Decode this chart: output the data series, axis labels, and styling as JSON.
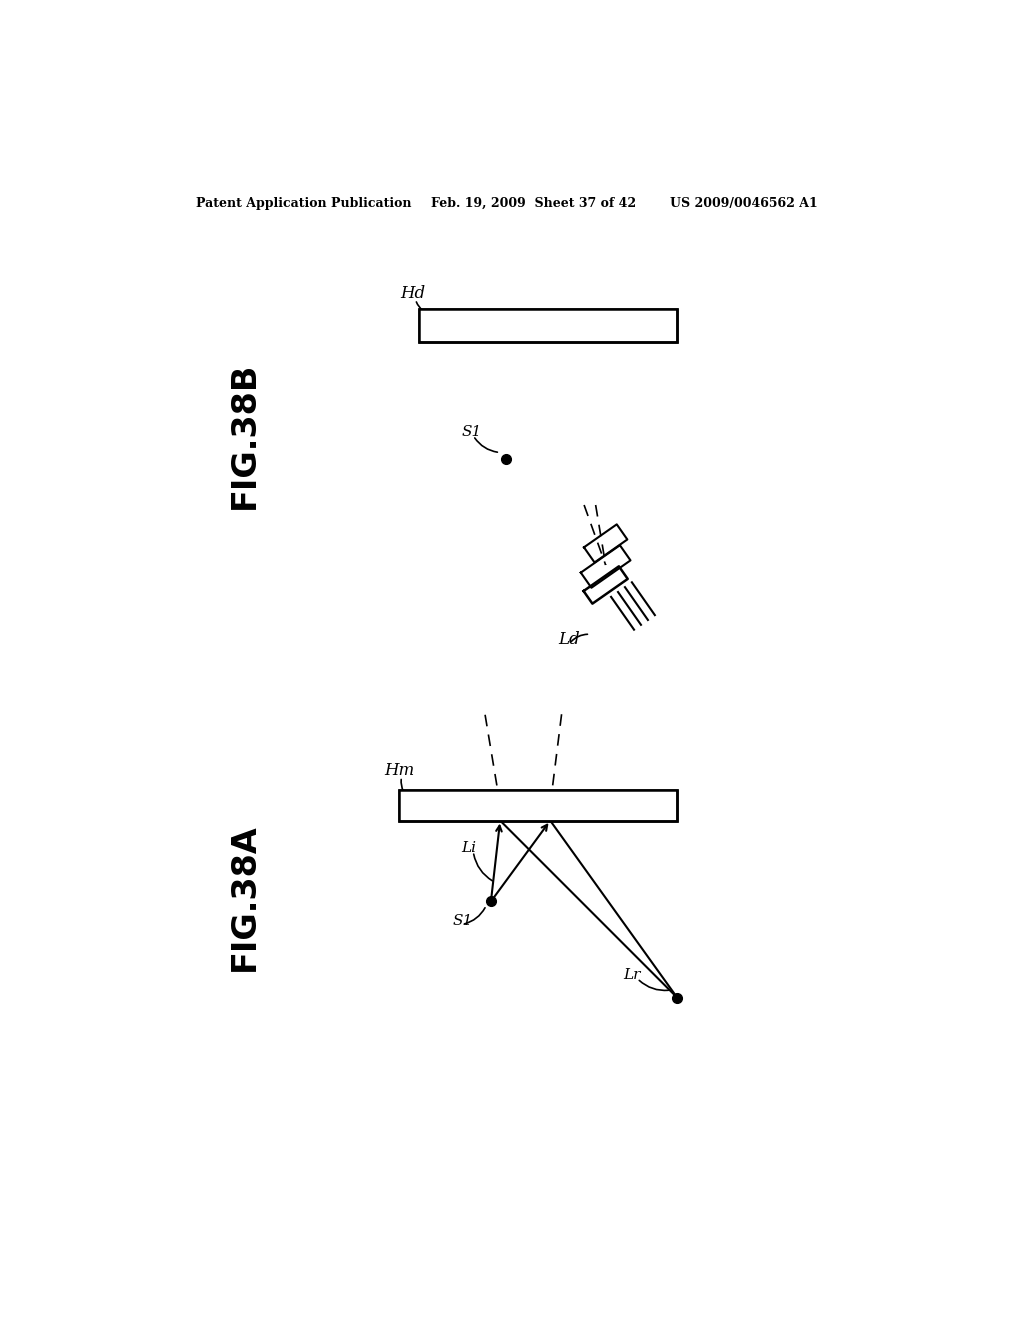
{
  "bg_color": "#ffffff",
  "header_left": "Patent Application Publication",
  "header_mid": "Feb. 19, 2009  Sheet 37 of 42",
  "header_right": "US 2009/0046562 A1",
  "fig38b_label": "FIG.38B",
  "fig38a_label": "FIG.38A",
  "Hd_label": "Hd",
  "S1b_label": "S1",
  "Ld_label": "Ld",
  "Hm_label": "Hm",
  "Li_label": "Li",
  "S1a_label": "S1",
  "Lr_label": "Lr"
}
